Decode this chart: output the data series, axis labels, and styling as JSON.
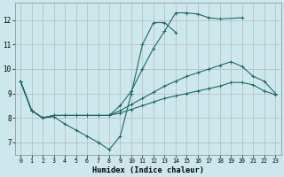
{
  "xlabel": "Humidex (Indice chaleur)",
  "bg_color": "#cde8ec",
  "grid_color": "#b8b8b8",
  "line_color": "#1a6b65",
  "xlim": [
    -0.5,
    23.5
  ],
  "ylim": [
    6.5,
    12.7
  ],
  "yticks": [
    7,
    8,
    9,
    10,
    11,
    12
  ],
  "xticks": [
    0,
    1,
    2,
    3,
    4,
    5,
    6,
    7,
    8,
    9,
    10,
    11,
    12,
    13,
    14,
    15,
    16,
    17,
    18,
    19,
    20,
    21,
    22,
    23
  ],
  "line1_x": [
    0,
    1,
    2,
    3,
    4,
    5,
    6,
    7,
    8,
    9,
    10,
    11,
    12,
    13,
    14
  ],
  "line1_y": [
    9.5,
    8.3,
    8.0,
    8.05,
    7.75,
    7.5,
    7.25,
    7.0,
    6.7,
    7.25,
    9.0,
    11.0,
    11.9,
    11.9,
    11.5
  ],
  "line2_x": [
    0,
    1,
    2,
    3,
    4,
    5,
    6,
    7,
    8,
    9,
    10,
    11,
    12,
    13,
    14,
    15,
    16,
    17,
    18,
    20
  ],
  "line2_y": [
    9.5,
    8.3,
    8.0,
    8.1,
    8.1,
    8.1,
    8.1,
    8.1,
    8.1,
    8.5,
    9.1,
    10.0,
    10.85,
    11.55,
    12.3,
    12.3,
    12.25,
    12.1,
    12.05,
    12.1
  ],
  "line3_x": [
    0,
    1,
    2,
    3,
    4,
    5,
    6,
    7,
    8,
    9,
    10,
    11,
    12,
    13,
    14,
    15,
    16,
    17,
    18,
    19,
    20,
    21,
    22,
    23
  ],
  "line3_y": [
    9.5,
    8.3,
    8.0,
    8.1,
    8.1,
    8.1,
    8.1,
    8.1,
    8.1,
    8.3,
    8.55,
    8.8,
    9.05,
    9.3,
    9.5,
    9.7,
    9.85,
    10.0,
    10.15,
    10.3,
    10.1,
    9.7,
    9.5,
    9.0
  ],
  "line4_x": [
    0,
    1,
    2,
    3,
    4,
    5,
    6,
    7,
    8,
    9,
    10,
    11,
    12,
    13,
    14,
    15,
    16,
    17,
    18,
    19,
    20,
    21,
    22,
    23
  ],
  "line4_y": [
    9.5,
    8.3,
    8.0,
    8.1,
    8.1,
    8.1,
    8.1,
    8.1,
    8.1,
    8.2,
    8.35,
    8.5,
    8.65,
    8.8,
    8.9,
    9.0,
    9.1,
    9.2,
    9.3,
    9.45,
    9.45,
    9.35,
    9.1,
    8.95
  ]
}
